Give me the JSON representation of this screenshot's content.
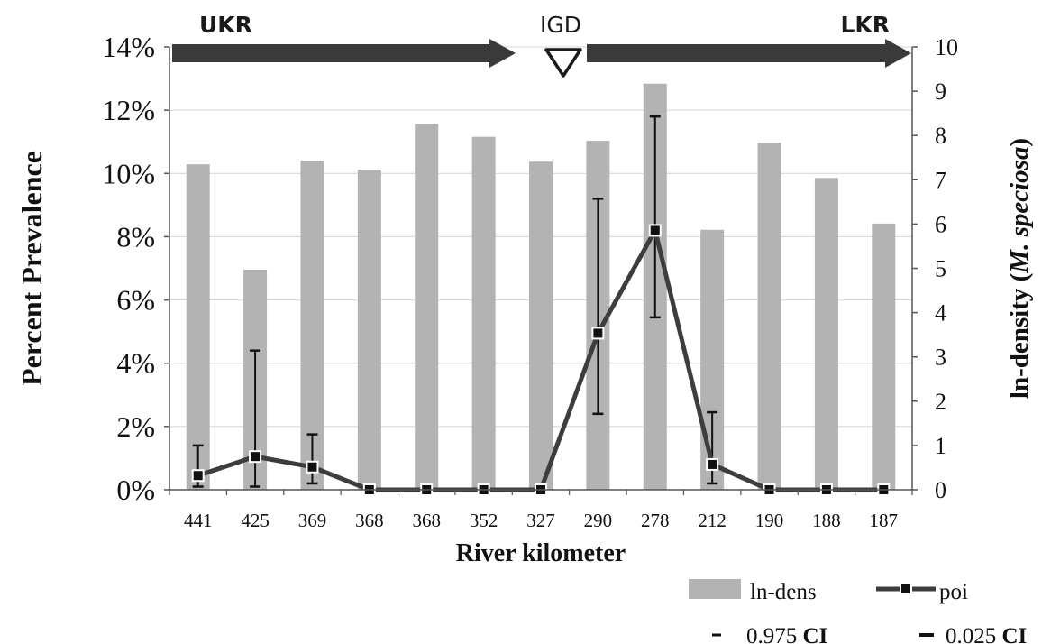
{
  "chart_data": {
    "type": "bar",
    "categories": [
      "441",
      "425",
      "369",
      "368",
      "368",
      "352",
      "327",
      "290",
      "278",
      "212",
      "190",
      "188",
      "187"
    ],
    "xlabel": "River kilometer",
    "ylabel_left": "Percent Prevalence",
    "ylabel_right_prefix": "ln-density (",
    "ylabel_right_species": "M. speciosa",
    "ylabel_right_suffix": ")",
    "ylim_left": [
      0,
      14
    ],
    "ylim_right": [
      0,
      10
    ],
    "left_ticks": [
      "0%",
      "2%",
      "4%",
      "6%",
      "8%",
      "10%",
      "12%",
      "14%"
    ],
    "right_ticks": [
      "0",
      "1",
      "2",
      "3",
      "4",
      "5",
      "6",
      "7",
      "8",
      "9",
      "10"
    ],
    "gridlines": true,
    "legend_position": "bottom-right",
    "series": [
      {
        "name": "ln-dens",
        "type": "bar",
        "axis": "right",
        "color": "#b3b3b3",
        "values": [
          7.35,
          4.97,
          7.43,
          7.23,
          8.26,
          7.97,
          7.41,
          7.88,
          9.17,
          5.87,
          7.84,
          7.04,
          6.01
        ]
      },
      {
        "name": "poi",
        "type": "line",
        "axis": "left",
        "color": "#3d3d3d",
        "values": [
          0.45,
          1.05,
          0.72,
          0,
          0,
          0,
          0,
          4.95,
          8.2,
          0.8,
          0,
          0,
          0
        ]
      },
      {
        "name": "0.975 CI",
        "type": "errorbar-upper",
        "axis": "left",
        "values": [
          1.4,
          4.4,
          1.75,
          null,
          null,
          null,
          null,
          9.2,
          11.8,
          2.45,
          null,
          null,
          null
        ]
      },
      {
        "name": "0.025 CI",
        "type": "errorbar-lower",
        "axis": "left",
        "values": [
          0.1,
          0.1,
          0.2,
          null,
          null,
          null,
          null,
          2.4,
          5.45,
          0.2,
          null,
          null,
          null
        ]
      }
    ],
    "annotations": {
      "upper_label": "UKR",
      "dam_label": "IGD",
      "lower_label": "LKR"
    }
  },
  "legend": {
    "bar_label": "ln-dens",
    "line_label": "poi",
    "ci_upper_text": "0.975 ",
    "ci_upper_bold": "CI",
    "ci_lower_text": "0.025 ",
    "ci_lower_bold": "CI"
  }
}
